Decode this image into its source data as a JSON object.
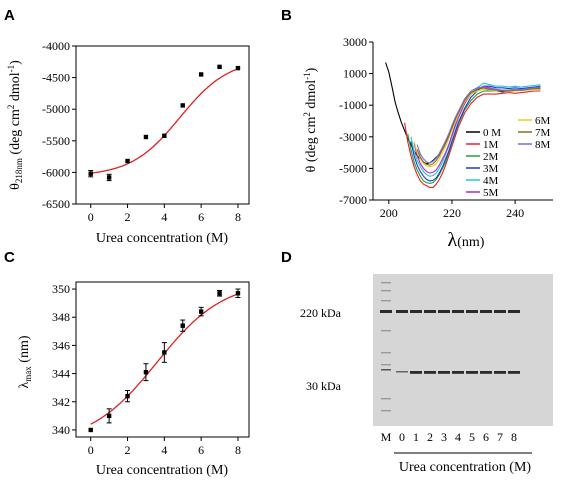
{
  "chart_data": [
    {
      "panel": "A",
      "type": "scatter",
      "xlabel": "Urea concentration (M)",
      "ylabel": "θ218nm (deg cm2 dmol-1)",
      "ylabel_main": "θ",
      "ylabel_sub": "218nm",
      "ylabel_units": " (deg cm",
      "ylabel_sup1": "2",
      "ylabel_units2": " dmol",
      "ylabel_sup2": "-1",
      "ylabel_close": ")",
      "xlim": [
        -0.8,
        8.6
      ],
      "ylim": [
        -6500,
        -4000
      ],
      "xticks": [
        0,
        2,
        4,
        6,
        8
      ],
      "xtick_labels": [
        "0",
        "2",
        "4",
        "6",
        "8"
      ],
      "yticks": [
        -6500,
        -6000,
        -5500,
        -5000,
        -4500,
        -4000
      ],
      "ytick_labels": [
        "-6500",
        "-6000",
        "-5500",
        "-5000",
        "-4500",
        "-4000"
      ],
      "x": [
        0,
        1,
        2,
        3,
        4,
        5,
        6,
        7,
        8
      ],
      "y": [
        -6020,
        -6080,
        -5820,
        -5440,
        -5420,
        -4940,
        -4450,
        -4330,
        -4350
      ],
      "err": [
        50,
        50,
        0,
        0,
        0,
        0,
        0,
        0,
        0
      ],
      "fit": {
        "bottom": -6060,
        "top": -4200,
        "x0": 4.85,
        "k": 0.75
      },
      "point_color": "#000000",
      "fit_color": "#e02020"
    },
    {
      "panel": "B",
      "type": "line",
      "xlabel_main": "λ",
      "xlabel_units": "(nm)",
      "ylabel": "θ (deg cm2 dmol-1)",
      "ylabel_main": "θ",
      "ylabel_units": " (deg cm",
      "ylabel_sup1": "2",
      "ylabel_units2": " dmol",
      "ylabel_sup2": "-1",
      "ylabel_close": ")",
      "xlim": [
        195,
        252
      ],
      "ylim": [
        -7000,
        3000
      ],
      "xticks": [
        200,
        220,
        240
      ],
      "xtick_labels": [
        "200",
        "220",
        "240"
      ],
      "yticks": [
        -7000,
        -5000,
        -3000,
        -1000,
        1000,
        3000
      ],
      "ytick_labels": [
        "-7000",
        "-5000",
        "-3000",
        "-1000",
        "1000",
        "3000"
      ],
      "series": [
        {
          "name": "0 M",
          "color": "#000000",
          "x": [
            199,
            200,
            201,
            202,
            203,
            204,
            205,
            206,
            207,
            208,
            209,
            210,
            211,
            212,
            213,
            214,
            215,
            216,
            217,
            218,
            219,
            220,
            221,
            222,
            224,
            226,
            228,
            230,
            232,
            234,
            236,
            238,
            240,
            242,
            244,
            246,
            248
          ],
          "y": [
            1700,
            1100,
            200,
            -800,
            -1500,
            -2100,
            -2600,
            -3100,
            -3500,
            -3900,
            -4200,
            -4400,
            -4600,
            -4700,
            -4650,
            -4500,
            -4300,
            -4100,
            -3800,
            -3400,
            -3000,
            -2500,
            -2000,
            -1500,
            -800,
            -300,
            0,
            100,
            0,
            -100,
            -150,
            -100,
            -50,
            0,
            50,
            0,
            0
          ]
        },
        {
          "name": "1M",
          "color": "#e8202a",
          "x": [
            205,
            206,
            207,
            208,
            209,
            210,
            211,
            212,
            213,
            214,
            215,
            216,
            217,
            218,
            219,
            220,
            221,
            222,
            224,
            226,
            228,
            230,
            232,
            234,
            236,
            238,
            240,
            242,
            244,
            246,
            248
          ],
          "y": [
            -2100,
            -3300,
            -4200,
            -4900,
            -5400,
            -5800,
            -6000,
            -6100,
            -6200,
            -6200,
            -6000,
            -5700,
            -5300,
            -4800,
            -4200,
            -3600,
            -3000,
            -2400,
            -1500,
            -900,
            -500,
            -300,
            -300,
            -300,
            -250,
            -200,
            -250,
            -200,
            -150,
            -100,
            -100
          ]
        },
        {
          "name": "2M",
          "color": "#20a040",
          "x": [
            206,
            207,
            208,
            209,
            210,
            211,
            212,
            213,
            214,
            215,
            216,
            217,
            218,
            219,
            220,
            221,
            222,
            224,
            226,
            228,
            230,
            232,
            234,
            236,
            238,
            240,
            242,
            244,
            246,
            248
          ],
          "y": [
            -2800,
            -3800,
            -4600,
            -5100,
            -5500,
            -5800,
            -5900,
            -5950,
            -5900,
            -5700,
            -5400,
            -5000,
            -4600,
            -4000,
            -3400,
            -2800,
            -2200,
            -1300,
            -700,
            -300,
            -100,
            -100,
            -100,
            -100,
            -50,
            -100,
            -50,
            0,
            0,
            0
          ]
        },
        {
          "name": "3M",
          "color": "#1a3ec8",
          "x": [
            207,
            208,
            209,
            210,
            211,
            212,
            213,
            214,
            215,
            216,
            217,
            218,
            219,
            220,
            221,
            222,
            224,
            226,
            228,
            230,
            232,
            234,
            236,
            238,
            240,
            242,
            244,
            246,
            248
          ],
          "y": [
            -3300,
            -4200,
            -4800,
            -5200,
            -5500,
            -5700,
            -5800,
            -5750,
            -5600,
            -5300,
            -4900,
            -4400,
            -3900,
            -3300,
            -2700,
            -2100,
            -1200,
            -500,
            -100,
            200,
            200,
            100,
            100,
            50,
            100,
            50,
            100,
            150,
            200
          ]
        },
        {
          "name": "4M",
          "color": "#20c8d8",
          "x": [
            207,
            208,
            209,
            210,
            211,
            212,
            213,
            214,
            215,
            216,
            217,
            218,
            219,
            220,
            221,
            222,
            224,
            226,
            228,
            230,
            232,
            234,
            236,
            238,
            240,
            242,
            244,
            246,
            248
          ],
          "y": [
            -3000,
            -3900,
            -4500,
            -4900,
            -5200,
            -5400,
            -5500,
            -5450,
            -5300,
            -5000,
            -4600,
            -4100,
            -3600,
            -3000,
            -2400,
            -1800,
            -900,
            -300,
            100,
            400,
            300,
            200,
            200,
            150,
            200,
            150,
            200,
            250,
            300
          ]
        },
        {
          "name": "5M",
          "color": "#c020c0",
          "x": [
            208,
            209,
            210,
            211,
            212,
            213,
            214,
            215,
            216,
            217,
            218,
            219,
            220,
            221,
            222,
            224,
            226,
            228,
            230,
            232,
            234,
            236,
            238,
            240,
            242,
            244,
            246,
            248
          ],
          "y": [
            -3400,
            -4200,
            -4700,
            -5000,
            -5200,
            -5300,
            -5250,
            -5100,
            -4800,
            -4400,
            -4000,
            -3500,
            -2900,
            -2300,
            -1800,
            -900,
            -300,
            0,
            200,
            100,
            0,
            -50,
            -50,
            0,
            -50,
            0,
            50,
            100
          ]
        },
        {
          "name": "6M",
          "color": "#e8d020",
          "x": [
            208,
            209,
            210,
            211,
            212,
            213,
            214,
            215,
            216,
            217,
            218,
            219,
            220,
            221,
            222,
            224,
            226,
            228,
            230,
            232,
            234,
            236,
            238,
            240,
            242,
            244,
            246,
            248
          ],
          "y": [
            -3300,
            -4000,
            -4400,
            -4700,
            -4850,
            -4900,
            -4850,
            -4700,
            -4400,
            -4000,
            -3600,
            -3100,
            -2600,
            -2100,
            -1600,
            -800,
            -300,
            -100,
            0,
            -50,
            -100,
            -100,
            -150,
            -100,
            -50,
            -50,
            0,
            0
          ]
        },
        {
          "name": "7M",
          "color": "#8a6a20",
          "x": [
            209,
            210,
            211,
            212,
            213,
            214,
            215,
            216,
            217,
            218,
            219,
            220,
            221,
            222,
            224,
            226,
            228,
            230,
            232,
            234,
            236,
            238,
            240,
            242,
            244,
            246,
            248
          ],
          "y": [
            -3800,
            -4300,
            -4600,
            -4750,
            -4800,
            -4700,
            -4500,
            -4200,
            -3800,
            -3400,
            -2900,
            -2400,
            -1900,
            -1500,
            -700,
            -200,
            0,
            100,
            0,
            -50,
            -100,
            -100,
            -50,
            -50,
            0,
            50,
            50
          ]
        },
        {
          "name": "8M",
          "color": "#7070d8",
          "x": [
            209,
            210,
            211,
            212,
            213,
            214,
            215,
            216,
            217,
            218,
            219,
            220,
            221,
            222,
            224,
            226,
            228,
            230,
            232,
            234,
            236,
            238,
            240,
            242,
            244,
            246,
            248
          ],
          "y": [
            -3500,
            -4100,
            -4400,
            -4600,
            -4650,
            -4550,
            -4350,
            -4050,
            -3650,
            -3250,
            -2800,
            -2300,
            -1800,
            -1400,
            -600,
            -100,
            100,
            150,
            50,
            0,
            -50,
            -50,
            0,
            0,
            50,
            100,
            150
          ]
        }
      ]
    },
    {
      "panel": "C",
      "type": "scatter",
      "xlabel": "Urea concentration (M)",
      "ylabel_main": "λ",
      "ylabel_sub": "max",
      "ylabel_units": " (nm)",
      "xlim": [
        -0.8,
        8.6
      ],
      "ylim": [
        339.5,
        350.5
      ],
      "xticks": [
        0,
        2,
        4,
        6,
        8
      ],
      "xtick_labels": [
        "0",
        "2",
        "4",
        "6",
        "8"
      ],
      "yticks": [
        340,
        342,
        344,
        346,
        348,
        350
      ],
      "ytick_labels": [
        "340",
        "342",
        "344",
        "346",
        "348",
        "350"
      ],
      "x": [
        0,
        1,
        2,
        3,
        4,
        5,
        6,
        7,
        8
      ],
      "y": [
        340.0,
        341.0,
        342.4,
        344.1,
        345.5,
        347.4,
        348.4,
        349.7,
        349.7
      ],
      "err": [
        0,
        0.5,
        0.4,
        0.6,
        0.7,
        0.4,
        0.3,
        0.2,
        0.3
      ],
      "fit": {
        "bottom": 339.0,
        "top": 350.6,
        "x0": 3.6,
        "k": 0.55
      },
      "point_color": "#000000",
      "fit_color": "#e02020"
    }
  ],
  "panels": {
    "a": "A",
    "b": "B",
    "c": "C",
    "d": "D"
  },
  "gel": {
    "marker_upper": "220 kDa",
    "marker_lower": "30 kDa",
    "lane_labels": [
      "M",
      "0",
      "1",
      "2",
      "3",
      "4",
      "5",
      "6",
      "7",
      "8"
    ],
    "xlabel": "Urea concentration (M)",
    "background": "#d6d6d6",
    "band_color": "#2a2a2a"
  }
}
